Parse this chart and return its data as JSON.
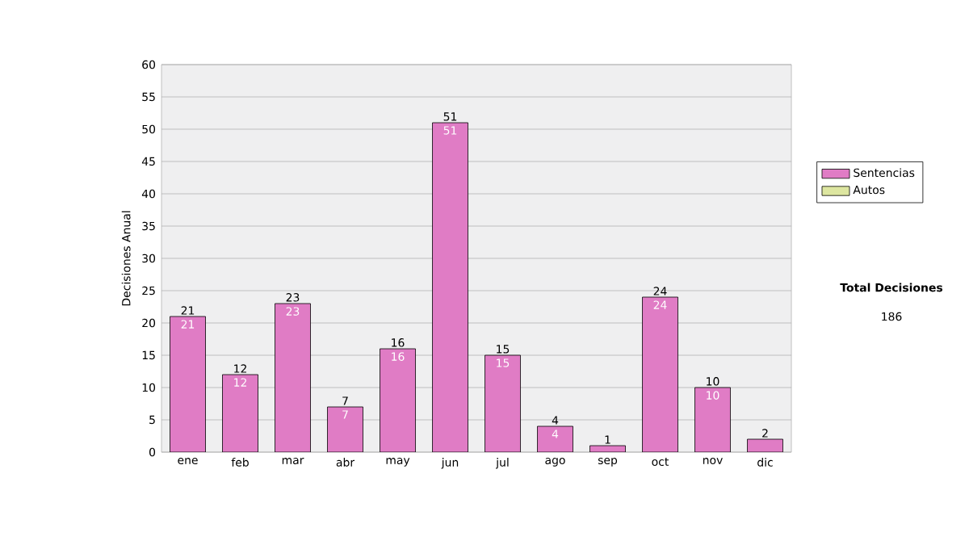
{
  "chart_data": {
    "type": "bar",
    "ylabel": "Decisiones Anual",
    "categories": [
      "ene",
      "feb",
      "mar",
      "abr",
      "may",
      "jun",
      "jul",
      "ago",
      "sep",
      "oct",
      "nov",
      "dic"
    ],
    "series": [
      {
        "name": "Sentencias",
        "color": "#e07cc5",
        "values": [
          21,
          12,
          23,
          7,
          16,
          51,
          15,
          4,
          1,
          24,
          10,
          2
        ],
        "value_labels": [
          "21",
          "12",
          "23",
          "7",
          "16",
          "51",
          "15",
          "4",
          null,
          "24",
          "10",
          null
        ]
      },
      {
        "name": "Autos",
        "color": "#dde6a0",
        "values": [
          null,
          null,
          null,
          null,
          null,
          null,
          null,
          null,
          null,
          null,
          null,
          null
        ]
      }
    ],
    "stacked": true,
    "totals": [
      "21",
      "12",
      "23",
      "7",
      "16",
      "51",
      "15",
      "4",
      "1",
      "24",
      "10",
      "2"
    ],
    "ylim": [
      0,
      60
    ],
    "yticks": [
      0,
      5,
      10,
      15,
      20,
      25,
      30,
      35,
      40,
      45,
      50,
      55,
      60
    ],
    "grid": "y",
    "legend": "right",
    "annotations": [
      "Total Decisiones",
      "186"
    ]
  }
}
